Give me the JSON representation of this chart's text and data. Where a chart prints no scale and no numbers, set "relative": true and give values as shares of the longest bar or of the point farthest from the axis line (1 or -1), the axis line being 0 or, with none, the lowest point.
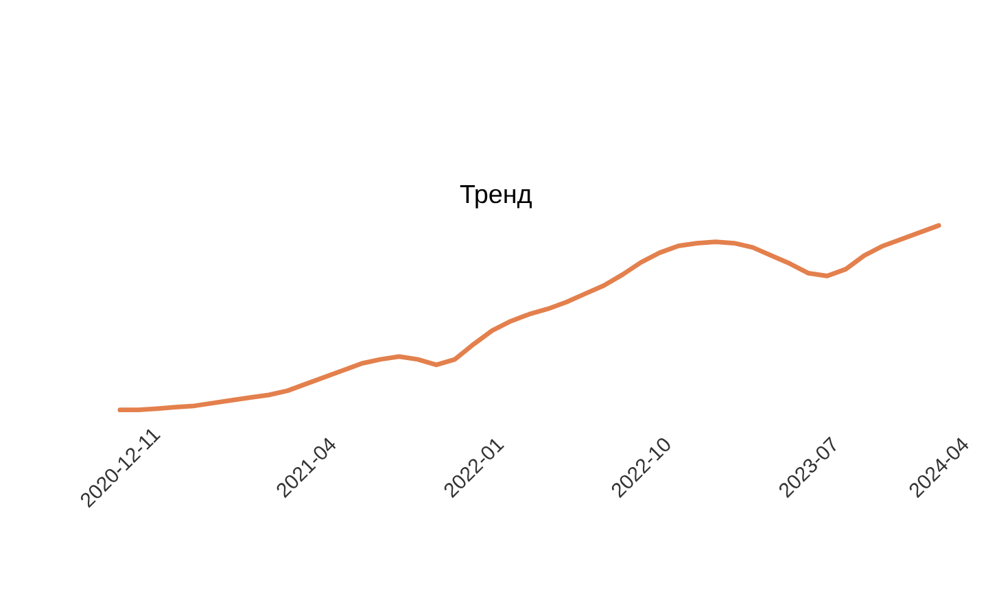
{
  "chart_data": {
    "type": "line",
    "title": "Тренд",
    "relative": true,
    "grid": false,
    "marker": "none",
    "categories": [
      "2020-12-11",
      null,
      null,
      null,
      null,
      null,
      null,
      null,
      null,
      null,
      "2021-04",
      null,
      null,
      null,
      null,
      null,
      null,
      null,
      null,
      "2022-01",
      null,
      null,
      null,
      null,
      null,
      null,
      null,
      null,
      "2022-10",
      null,
      null,
      null,
      null,
      null,
      null,
      null,
      null,
      "2023-07",
      null,
      null,
      null,
      null,
      null,
      null,
      "2024-04"
    ],
    "series": [
      {
        "values": [
          0,
          0,
          0.007,
          0.015,
          0.022,
          0.037,
          0.052,
          0.067,
          0.081,
          0.104,
          0.141,
          0.178,
          0.215,
          0.252,
          0.274,
          0.289,
          0.274,
          0.244,
          0.274,
          0.356,
          0.43,
          0.481,
          0.519,
          0.548,
          0.585,
          0.63,
          0.674,
          0.733,
          0.8,
          0.852,
          0.889,
          0.904,
          0.911,
          0.904,
          0.881,
          0.837,
          0.793,
          0.741,
          0.726,
          0.763,
          0.837,
          0.889,
          0.926,
          0.963,
          1
        ],
        "color": "#e3804d"
      }
    ]
  }
}
